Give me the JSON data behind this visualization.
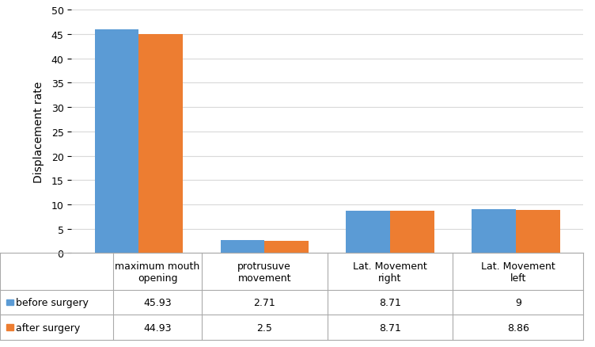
{
  "categories": [
    "maximum mouth\nopening",
    "protrusuve\nmovement",
    "Lat. Movement\nright",
    "Lat. Movement\nleft"
  ],
  "before_surgery": [
    45.93,
    2.71,
    8.71,
    9
  ],
  "after_surgery": [
    44.93,
    2.5,
    8.71,
    8.86
  ],
  "before_color": "#5B9BD5",
  "after_color": "#ED7D31",
  "ylabel": "Displacement rate",
  "ylim": [
    0,
    50
  ],
  "yticks": [
    0,
    5,
    10,
    15,
    20,
    25,
    30,
    35,
    40,
    45,
    50
  ],
  "legend_before": "before surgery",
  "legend_after": "after surgery",
  "table_before_values": [
    "45.93",
    "2.71",
    "8.71",
    "9"
  ],
  "table_after_values": [
    "44.93",
    "2.5",
    "8.71",
    "8.86"
  ],
  "bar_width": 0.35,
  "background_color": "#ffffff",
  "grid_color": "#d9d9d9"
}
